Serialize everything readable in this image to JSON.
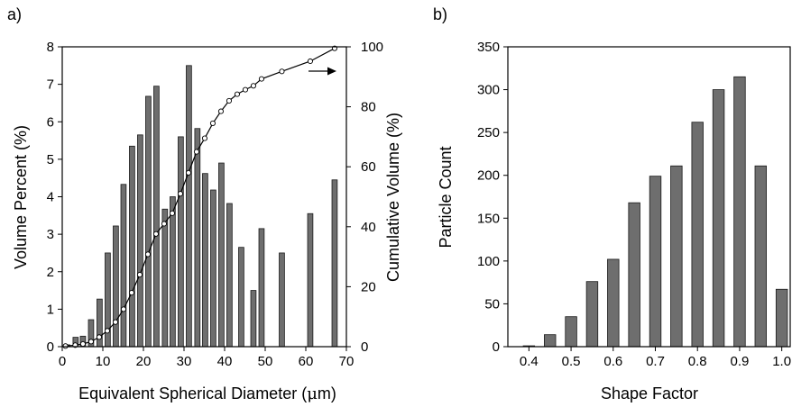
{
  "panels": {
    "a": {
      "label": "a)"
    },
    "b": {
      "label": "b)"
    }
  },
  "colors": {
    "bar_fill": "#6e6e6e",
    "bar_stroke": "#1a1a1a",
    "line": "#000000",
    "marker_fill": "#ffffff"
  },
  "chart_data": [
    {
      "panel": "a",
      "type": "bar+line",
      "xlabel_parts": [
        "Equivalent Spherical Diameter (",
        "μ",
        "m)"
      ],
      "ylabel": "Volume Percent (%)",
      "y2label": "Cumulative Volume (%)",
      "xlim": [
        0,
        70
      ],
      "ylim": [
        0,
        8
      ],
      "y2lim": [
        0,
        100
      ],
      "xticks": [
        0,
        10,
        20,
        30,
        40,
        50,
        60,
        70
      ],
      "yticks": [
        0,
        1,
        2,
        3,
        4,
        5,
        6,
        7,
        8
      ],
      "y2ticks": [
        0,
        20,
        40,
        60,
        80,
        100
      ],
      "bar_width": 1.3,
      "bars": {
        "x": [
          1.2,
          3.3,
          5.1,
          7.1,
          9.2,
          11.2,
          13.2,
          15.1,
          17.2,
          19.2,
          21.2,
          23.2,
          25.3,
          27.2,
          29.2,
          31.2,
          33.3,
          35.2,
          37.2,
          39.2,
          41.2,
          44.1,
          47.1,
          49.1,
          54.1,
          61.1,
          67.1
        ],
        "values": [
          0.05,
          0.25,
          0.28,
          0.72,
          1.27,
          2.5,
          3.22,
          4.33,
          5.35,
          5.65,
          6.68,
          6.95,
          3.67,
          4.0,
          5.6,
          7.5,
          5.82,
          4.62,
          4.18,
          4.9,
          3.82,
          2.65,
          1.5,
          3.15,
          2.5,
          3.55,
          4.45
        ]
      },
      "cumulative": {
        "x": [
          0.8,
          3.2,
          5.1,
          7.1,
          9.1,
          11.1,
          13.1,
          15.1,
          17.1,
          19.1,
          21.1,
          23.1,
          25.1,
          27.1,
          29.1,
          31.1,
          33.1,
          35.1,
          37.1,
          39.1,
          41.1,
          43.1,
          45.1,
          47.1,
          49.1,
          54.1,
          61.1,
          67.1
        ],
        "values": [
          0.2,
          0.5,
          0.9,
          1.7,
          3.2,
          5.3,
          8.2,
          12.5,
          18.0,
          24.0,
          30.8,
          37.6,
          41.0,
          44.5,
          51.0,
          58.0,
          65.0,
          69.5,
          74.5,
          78.5,
          82.0,
          84.2,
          85.7,
          87.0,
          89.3,
          91.8,
          95.2,
          99.5
        ]
      },
      "arrow": "right"
    },
    {
      "panel": "b",
      "type": "bar",
      "xlabel": "Shape Factor",
      "ylabel": "Particle Count",
      "xlim": [
        0.35,
        1.02
      ],
      "ylim": [
        0,
        350
      ],
      "xticks": [
        "0.4",
        "0.5",
        "0.6",
        "0.7",
        "0.8",
        "0.9",
        "1.0"
      ],
      "yticks": [
        0,
        50,
        100,
        150,
        200,
        250,
        300,
        350
      ],
      "bar_width": 0.027,
      "bars": {
        "x": [
          0.4,
          0.45,
          0.5,
          0.55,
          0.6,
          0.65,
          0.7,
          0.75,
          0.8,
          0.85,
          0.9,
          0.95,
          1.0
        ],
        "values": [
          1,
          14,
          35,
          76,
          102,
          168,
          199,
          211,
          262,
          300,
          315,
          211,
          67
        ]
      }
    }
  ]
}
